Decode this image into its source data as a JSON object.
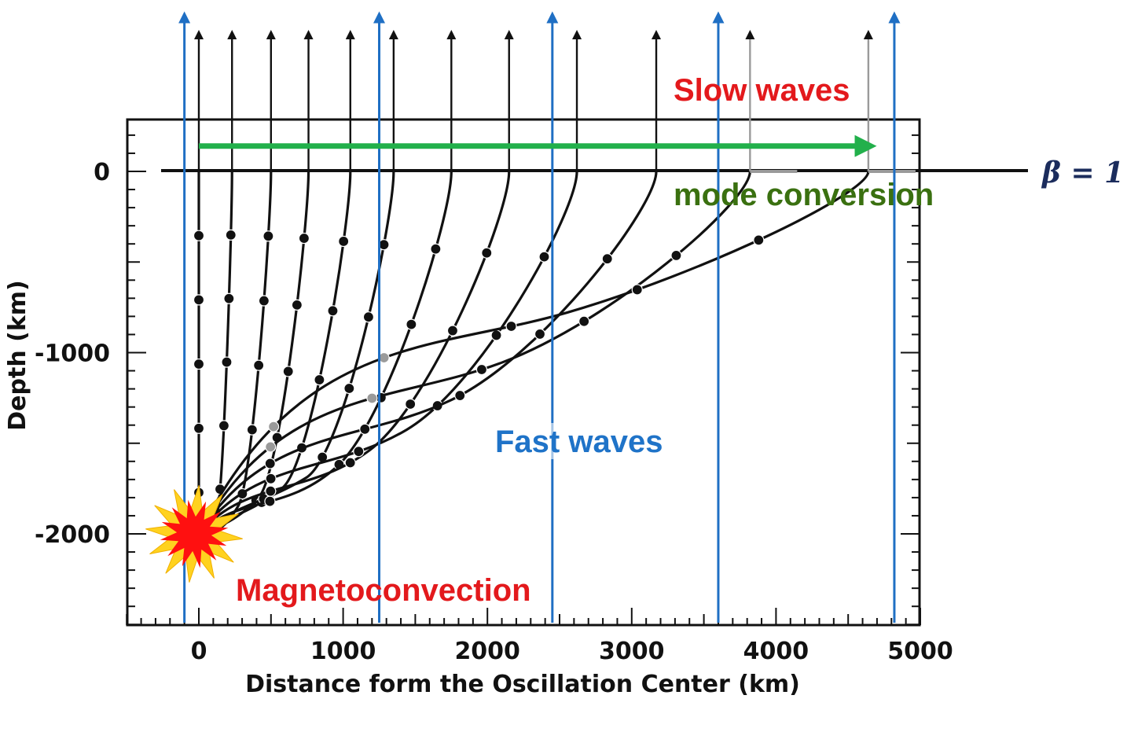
{
  "colors": {
    "ray": "#111111",
    "ray_converted": "#9a9a9a",
    "field_line": "#1f6fc4",
    "mode_arrow": "#22b04b",
    "slow_waves": "#e3191c",
    "mode_conversion": "#3a7010",
    "fast_waves": "#1f73c8",
    "magnetoconvection": "#e3191c",
    "beta_label": "#1b2c5c",
    "burst_outer": "#ffd21f",
    "burst_inner": "#ff1010"
  },
  "icons": {
    "source_burst": "explosion-burst-icon"
  },
  "chart_data": {
    "type": "line",
    "xlabel": "Distance form the Oscillation Center (km)",
    "ylabel": "Depth (km)",
    "xlim": [
      -500,
      5000
    ],
    "ylim": [
      -2500,
      300
    ],
    "x_ticks": [
      "0",
      "1000",
      "2000",
      "3000",
      "4000",
      "5000"
    ],
    "y_ticks": [
      "0",
      "-1000",
      "-2000"
    ],
    "x_tick_values": [
      0,
      1000,
      2000,
      3000,
      4000,
      5000
    ],
    "y_tick_values": [
      0,
      -1000,
      -2000
    ],
    "source": {
      "x": 0,
      "y": -2000
    },
    "beta_surface_depth": 0,
    "field_lines_x": [
      -100,
      1250,
      2450,
      3600,
      4820
    ],
    "mode_conversion_arrow": {
      "x_from": 0,
      "x_to": 4700,
      "y": 140
    },
    "rays": [
      {
        "surface_x": 0,
        "hit_y": -2030,
        "converted": false
      },
      {
        "surface_x": 230,
        "hit_y": -1990,
        "converted": false
      },
      {
        "surface_x": 500,
        "hit_y": -1940,
        "converted": false
      },
      {
        "surface_x": 760,
        "hit_y": -1890,
        "converted": false
      },
      {
        "surface_x": 1050,
        "hit_y": -1840,
        "converted": false
      },
      {
        "surface_x": 1350,
        "hit_y": -1780,
        "converted": false
      },
      {
        "surface_x": 1750,
        "hit_y": -1710,
        "converted": false
      },
      {
        "surface_x": 2150,
        "hit_y": -1620,
        "converted": false
      },
      {
        "surface_x": 2620,
        "hit_y": -1500,
        "converted": false
      },
      {
        "surface_x": 3170,
        "hit_y": -1330,
        "converted": false
      },
      {
        "surface_x": 3820,
        "hit_y": -1110,
        "converted": true
      },
      {
        "surface_x": 4640,
        "hit_y": -820,
        "converted": true
      }
    ]
  },
  "annotations": {
    "slow_waves": "Slow waves",
    "mode_conversion": "mode conversion",
    "fast_waves": "Fast waves",
    "magnetoconvection": "Magnetoconvection",
    "beta": "β = 1"
  }
}
